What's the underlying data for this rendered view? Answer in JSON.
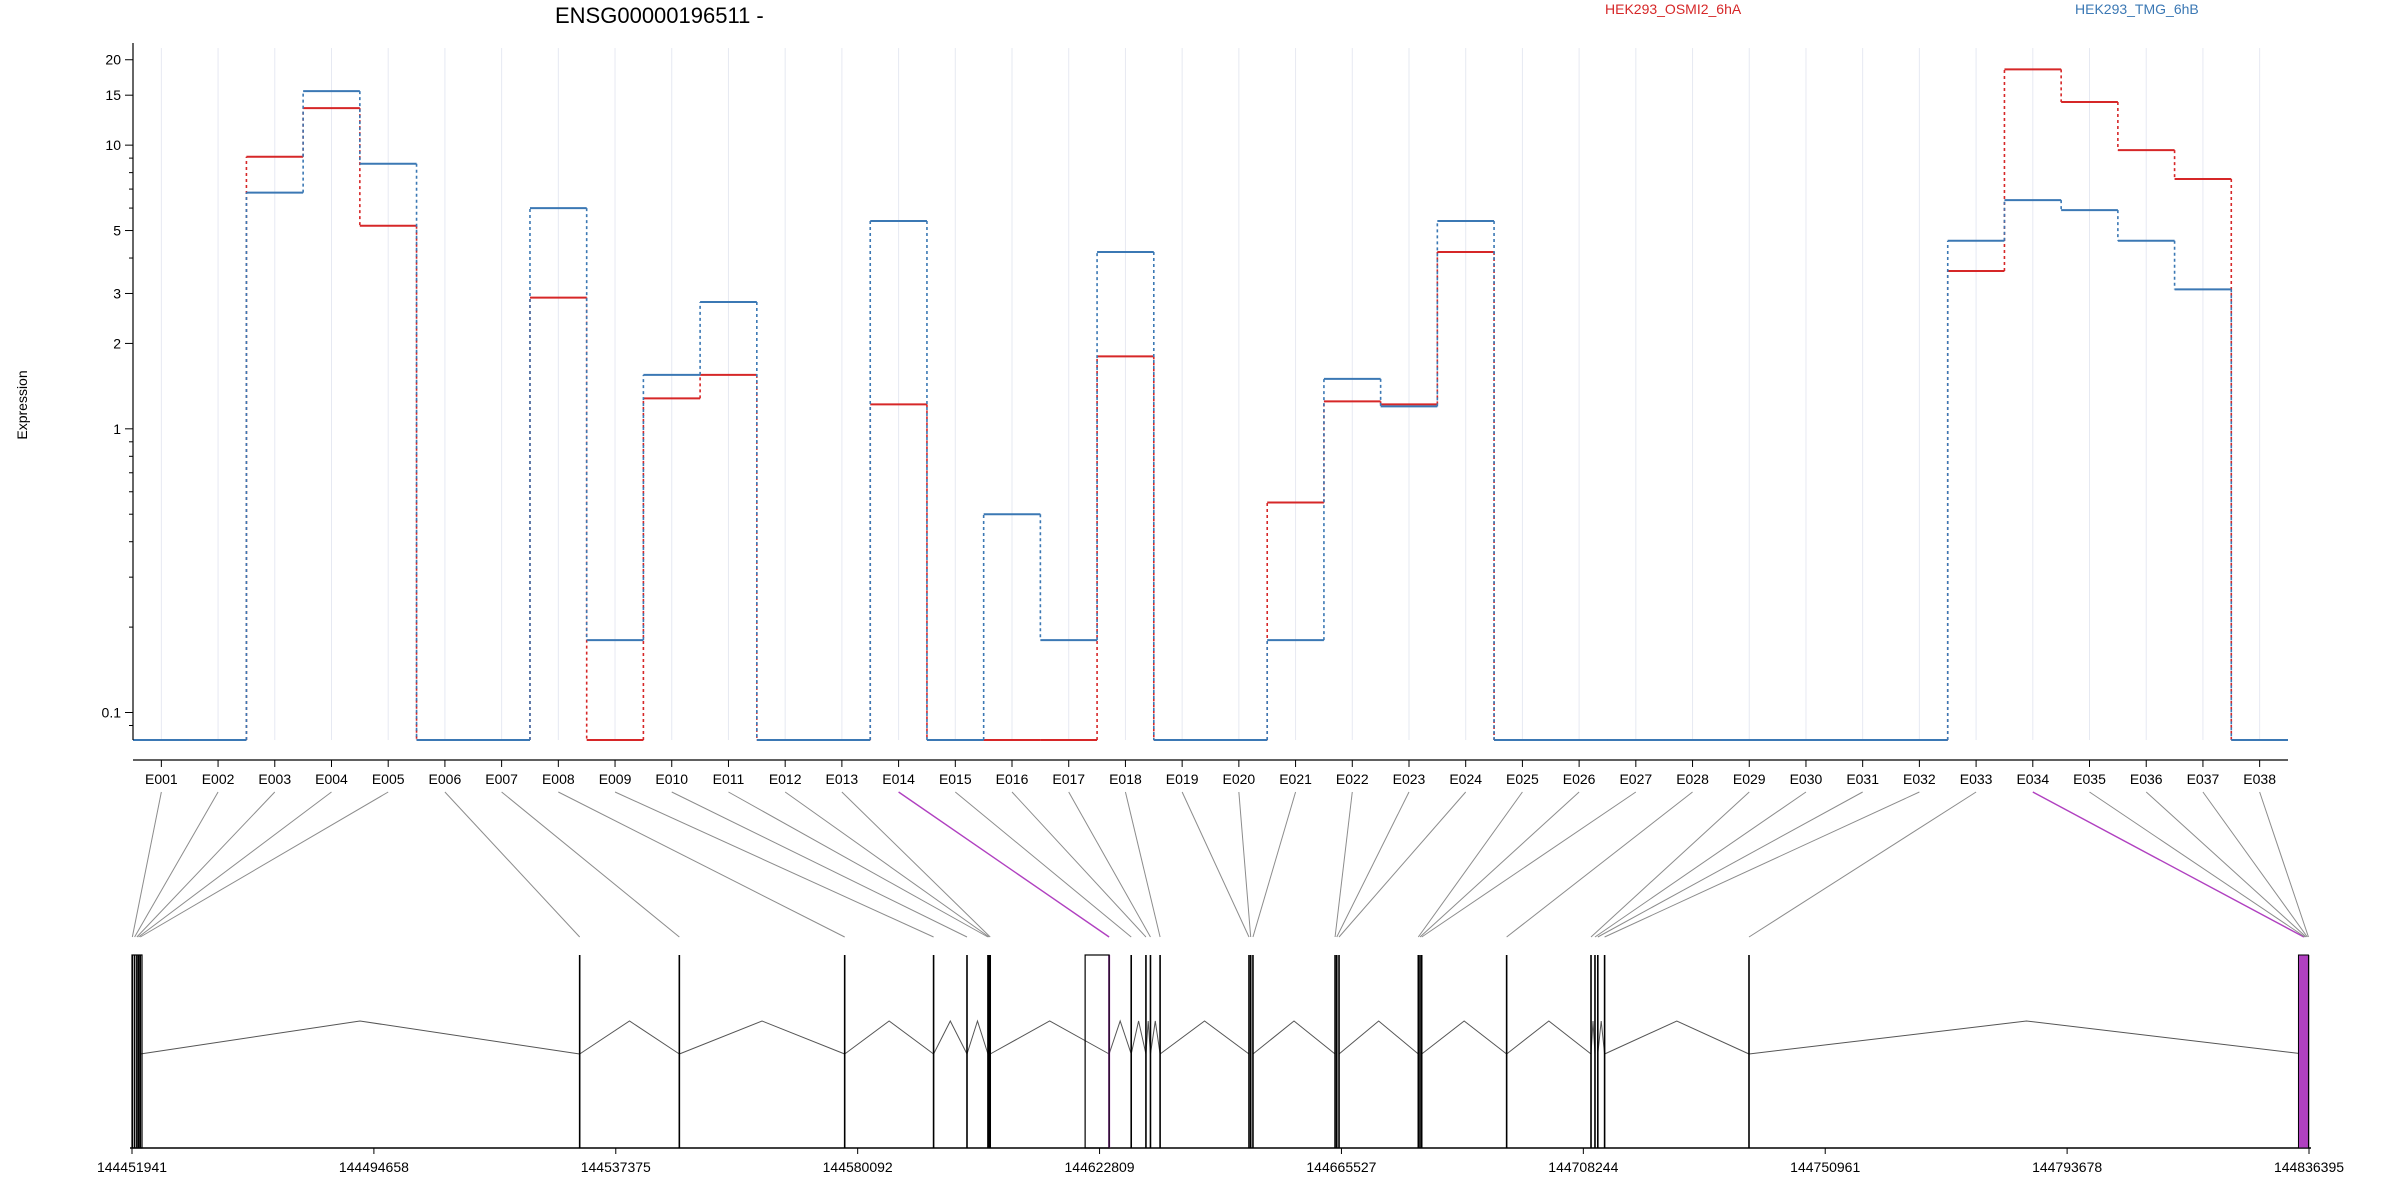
{
  "chart_data": {
    "type": "line",
    "title": "ENSG00000196511 -",
    "xlabel": "",
    "ylabel": "Expression",
    "y_scale": "log",
    "ylim": [
      0.08,
      22
    ],
    "yticks": [
      {
        "value": 0.1,
        "label": "0.1"
      },
      {
        "value": 1,
        "label": "1"
      },
      {
        "value": 2,
        "label": "2"
      },
      {
        "value": 3,
        "label": "3"
      },
      {
        "value": 5,
        "label": "5"
      },
      {
        "value": 10,
        "label": "10"
      },
      {
        "value": 15,
        "label": "15"
      },
      {
        "value": 20,
        "label": "20"
      }
    ],
    "categories": [
      "E001",
      "E002",
      "E003",
      "E004",
      "E005",
      "E006",
      "E007",
      "E008",
      "E009",
      "E010",
      "E011",
      "E012",
      "E013",
      "E014",
      "E015",
      "E016",
      "E017",
      "E018",
      "E019",
      "E020",
      "E021",
      "E022",
      "E023",
      "E024",
      "E025",
      "E026",
      "E027",
      "E028",
      "E029",
      "E030",
      "E031",
      "E032",
      "E033",
      "E034",
      "E035",
      "E036",
      "E037",
      "E038"
    ],
    "grid": "vertical-per-exon",
    "legend_placement": "top",
    "series": [
      {
        "name": "HEK293_OSMI2_6hA",
        "color": "#d62728",
        "values": [
          0.08,
          0.08,
          9.1,
          13.5,
          5.2,
          0.08,
          0.08,
          2.9,
          0.08,
          1.28,
          1.55,
          0.08,
          0.08,
          1.22,
          0.08,
          0.08,
          0.08,
          1.8,
          0.08,
          0.08,
          0.55,
          1.25,
          1.22,
          4.2,
          0.08,
          0.08,
          0.08,
          0.08,
          0.08,
          0.08,
          0.08,
          0.08,
          3.6,
          18.5,
          14.2,
          9.6,
          7.6,
          0.08
        ]
      },
      {
        "name": "HEK293_TMG_6hB",
        "color": "#3b78b4",
        "values": [
          0.08,
          0.08,
          6.8,
          15.5,
          8.6,
          0.08,
          0.08,
          6.0,
          0.18,
          1.55,
          2.8,
          0.08,
          0.08,
          5.4,
          0.08,
          0.5,
          0.18,
          4.2,
          0.08,
          0.08,
          0.18,
          1.5,
          1.2,
          5.4,
          0.08,
          0.08,
          0.08,
          0.08,
          0.08,
          0.08,
          0.08,
          0.08,
          4.6,
          6.4,
          5.9,
          4.6,
          3.1,
          0.08
        ]
      }
    ],
    "genomic_axis": {
      "ticks": [
        "144451941",
        "144494658",
        "144537375",
        "144580092",
        "144622809",
        "144665527",
        "144708244",
        "144750961",
        "144793678",
        "144836395"
      ],
      "start": 144451941,
      "end": 144836395,
      "exon_positions": [
        144452000,
        144452400,
        144452800,
        144453100,
        144453400,
        144531000,
        144548600,
        144577800,
        144593500,
        144599400,
        144603100,
        144603300,
        144603500,
        144624500,
        144628400,
        144631000,
        144631800,
        144633500,
        144649200,
        144649500,
        144649900,
        144664400,
        144664700,
        144665100,
        144679100,
        144679400,
        144679700,
        144694700,
        144709600,
        144710300,
        144710800,
        144712000,
        144737500,
        144835500,
        144835700,
        144835900,
        144836100,
        144836300
      ],
      "highlighted_exons": [
        "E014",
        "E034"
      ],
      "highlight_color": "#b040c0"
    }
  }
}
